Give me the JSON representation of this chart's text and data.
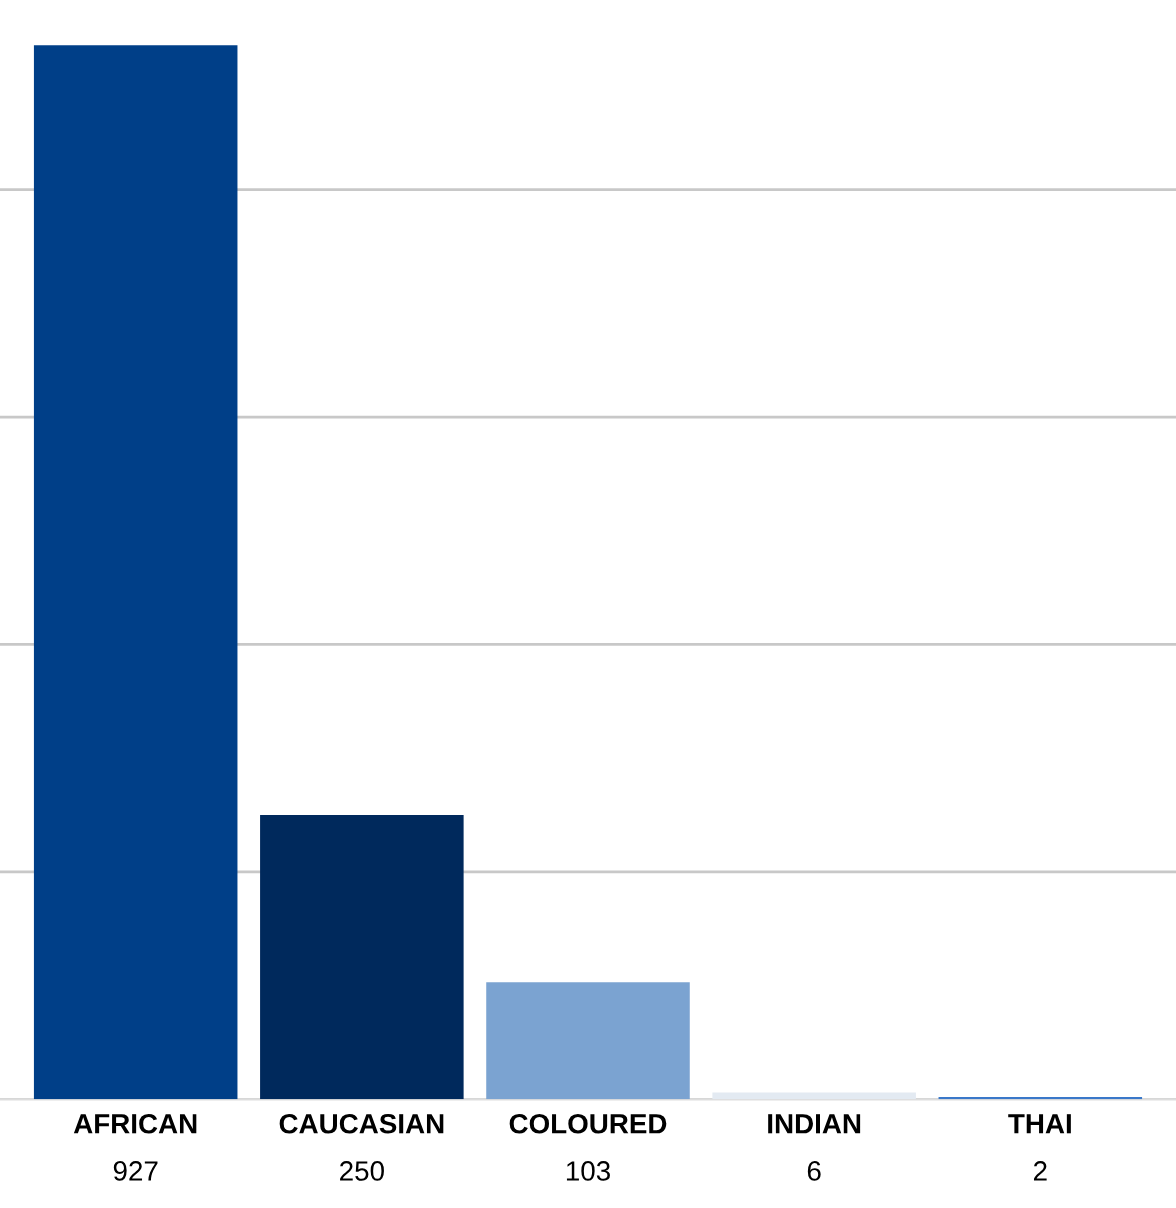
{
  "chart_data": {
    "type": "bar",
    "categories": [
      "AFRICAN",
      "CAUCASIAN",
      "COLOURED",
      "INDIAN",
      "THAI"
    ],
    "values": [
      927,
      250,
      103,
      6,
      2
    ],
    "colors": [
      "#003f88",
      "#00295c",
      "#7ba3d1",
      "#e3eaf2",
      "#3a78c9"
    ],
    "yticks": [
      {
        "value": 0,
        "label": null
      },
      {
        "value": 200,
        "label": null
      },
      {
        "value": 400,
        "label": null
      },
      {
        "value": 600,
        "label": null
      },
      {
        "value": 800,
        "label": null
      }
    ],
    "grid": "y",
    "data_labels": true,
    "tick_labels": "x"
  }
}
